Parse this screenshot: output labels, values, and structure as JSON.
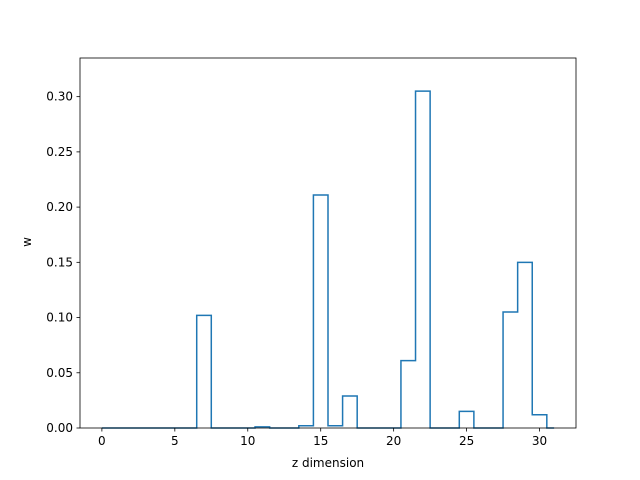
{
  "chart_data": {
    "type": "step",
    "xlabel": "z dimension",
    "ylabel": "w",
    "xlim": [
      -1.5,
      32.5
    ],
    "ylim": [
      0,
      0.335
    ],
    "grid": false,
    "xticks": [
      0,
      5,
      10,
      15,
      20,
      25,
      30
    ],
    "yticks": [
      0.0,
      0.05,
      0.1,
      0.15,
      0.2,
      0.25,
      0.3
    ],
    "ytick_labels": [
      "0.00",
      "0.05",
      "0.10",
      "0.15",
      "0.20",
      "0.25",
      "0.30"
    ],
    "line_color": "#1f77b4",
    "x": [
      0,
      1,
      2,
      3,
      4,
      5,
      6,
      7,
      8,
      9,
      10,
      11,
      12,
      13,
      14,
      15,
      16,
      17,
      18,
      19,
      20,
      21,
      22,
      23,
      24,
      25,
      26,
      27,
      28,
      29,
      30,
      31
    ],
    "values": [
      0,
      0,
      0,
      0,
      0,
      0,
      0,
      0.102,
      0,
      0,
      0,
      0.001,
      0,
      0,
      0.002,
      0.211,
      0.002,
      0.029,
      0,
      0,
      0,
      0.061,
      0.305,
      0,
      0,
      0.015,
      0,
      0,
      0.105,
      0.15,
      0.012,
      0
    ]
  }
}
